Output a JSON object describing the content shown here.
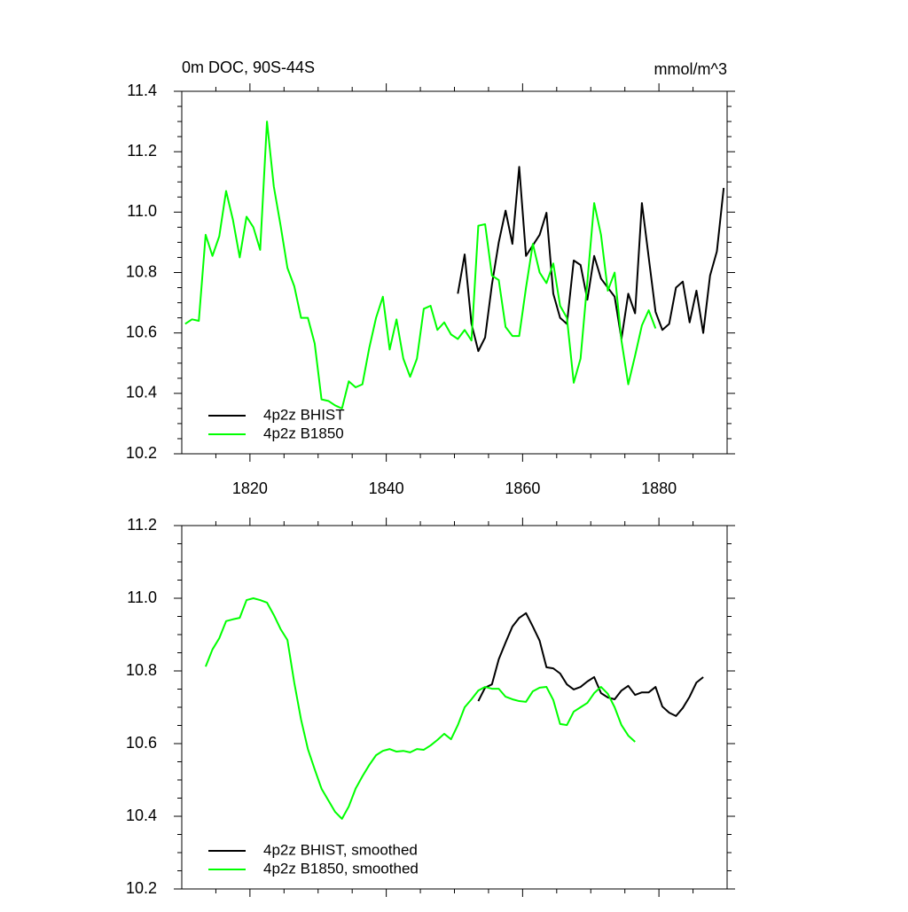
{
  "chart_data": [
    {
      "type": "line",
      "title": "0m DOC, 90S-44S",
      "subtitle": "mmol/m^3",
      "xlim": [
        1810,
        1890
      ],
      "xticks": [
        1820,
        1840,
        1860,
        1880
      ],
      "xminorticks": [
        1815,
        1825,
        1830,
        1835,
        1845,
        1850,
        1855,
        1865,
        1870,
        1875,
        1885
      ],
      "show_xtick_labels": true,
      "ylim": [
        10.2,
        11.4
      ],
      "yticks": [
        10.2,
        10.4,
        10.6,
        10.8,
        {
          "value": 11,
          "label": "11.0"
        },
        11.2,
        11.4
      ],
      "yminorticks": [
        10.25,
        10.3,
        10.35,
        10.45,
        10.5,
        10.55,
        10.65,
        10.7,
        10.75,
        10.85,
        10.9,
        10.95,
        11.05,
        11.1,
        11.15,
        11.25,
        11.3,
        11.35
      ],
      "grid": false,
      "legend": "lower left",
      "series": [
        {
          "name": "4p2z BHIST",
          "color": "#000000",
          "x": [
            1850.5,
            1851.5,
            1852.5,
            1853.5,
            1854.5,
            1855.5,
            1856.5,
            1857.5,
            1858.5,
            1859.5,
            1860.5,
            1861.5,
            1862.5,
            1863.5,
            1864.5,
            1865.5,
            1866.5,
            1867.5,
            1868.5,
            1869.5,
            1870.5,
            1871.5,
            1872.5,
            1873.5,
            1874.5,
            1875.5,
            1876.5,
            1877.5,
            1878.5,
            1879.5,
            1880.5,
            1881.5,
            1882.5,
            1883.5,
            1884.5,
            1885.5,
            1886.5,
            1887.5,
            1888.5,
            1889.5
          ],
          "values": [
            10.73,
            10.86,
            10.63,
            10.54,
            10.585,
            10.76,
            10.9,
            11.005,
            10.895,
            11.15,
            10.855,
            10.89,
            10.925,
            10.998,
            10.73,
            10.65,
            10.63,
            10.84,
            10.825,
            10.71,
            10.855,
            10.78,
            10.75,
            10.72,
            10.58,
            10.73,
            10.665,
            11.03,
            10.85,
            10.67,
            10.61,
            10.63,
            10.75,
            10.77,
            10.635,
            10.74,
            10.6,
            10.79,
            10.87,
            11.08
          ]
        },
        {
          "name": "4p2z B1850",
          "color": "#00ff00",
          "x": [
            1810.5,
            1811.5,
            1812.5,
            1813.5,
            1814.5,
            1815.5,
            1816.5,
            1817.5,
            1818.5,
            1819.5,
            1820.5,
            1821.5,
            1822.5,
            1823.5,
            1824.5,
            1825.5,
            1826.5,
            1827.5,
            1828.5,
            1829.5,
            1830.5,
            1831.5,
            1832.5,
            1833.5,
            1834.5,
            1835.5,
            1836.5,
            1837.5,
            1838.5,
            1839.5,
            1840.5,
            1841.5,
            1842.5,
            1843.5,
            1844.5,
            1845.5,
            1846.5,
            1847.5,
            1848.5,
            1849.5,
            1850.5,
            1851.5,
            1852.5,
            1853.5,
            1854.5,
            1855.5,
            1856.5,
            1857.5,
            1858.5,
            1859.5,
            1860.5,
            1861.5,
            1862.5,
            1863.5,
            1864.5,
            1865.5,
            1866.5,
            1867.5,
            1868.5,
            1869.5,
            1870.5,
            1871.5,
            1872.5,
            1873.5,
            1874.5,
            1875.5,
            1876.5,
            1877.5,
            1878.5,
            1879.5
          ],
          "values": [
            10.63,
            10.645,
            10.64,
            10.925,
            10.855,
            10.92,
            11.07,
            10.975,
            10.85,
            10.985,
            10.95,
            10.875,
            11.3,
            11.085,
            10.955,
            10.815,
            10.755,
            10.65,
            10.65,
            10.565,
            10.38,
            10.375,
            10.36,
            10.35,
            10.44,
            10.42,
            10.43,
            10.55,
            10.65,
            10.72,
            10.545,
            10.645,
            10.515,
            10.455,
            10.515,
            10.68,
            10.69,
            10.61,
            10.635,
            10.595,
            10.58,
            10.61,
            10.575,
            10.955,
            10.96,
            10.79,
            10.775,
            10.62,
            10.59,
            10.59,
            10.75,
            10.895,
            10.8,
            10.765,
            10.83,
            10.69,
            10.65,
            10.435,
            10.515,
            10.77,
            11.03,
            10.925,
            10.74,
            10.8,
            10.575,
            10.43,
            10.525,
            10.625,
            10.675,
            10.615
          ]
        }
      ]
    },
    {
      "type": "line",
      "xlim": [
        1810,
        1890
      ],
      "xticks": [
        1820,
        1840,
        1860,
        1880
      ],
      "xminorticks": [
        1815,
        1825,
        1830,
        1835,
        1845,
        1850,
        1855,
        1865,
        1870,
        1875,
        1885
      ],
      "show_xtick_labels": false,
      "ylim": [
        10.2,
        11.2
      ],
      "yticks": [
        10.2,
        10.4,
        10.6,
        10.8,
        {
          "value": 11,
          "label": "11.0"
        },
        11.2
      ],
      "yminorticks": [
        10.25,
        10.3,
        10.35,
        10.45,
        10.5,
        10.55,
        10.65,
        10.7,
        10.75,
        10.85,
        10.9,
        10.95,
        11.05,
        11.1,
        11.15
      ],
      "grid": false,
      "legend": "lower left",
      "series": [
        {
          "name": "4p2z BHIST, smoothed",
          "color": "#000000",
          "x": [
            1853.5,
            1854.5,
            1855.5,
            1856.5,
            1857.5,
            1858.5,
            1859.5,
            1860.5,
            1861.5,
            1862.5,
            1863.5,
            1864.5,
            1865.5,
            1866.5,
            1867.5,
            1868.5,
            1869.5,
            1870.5,
            1871.5,
            1872.5,
            1873.5,
            1874.5,
            1875.5,
            1876.5,
            1877.5,
            1878.5,
            1879.5,
            1880.5,
            1881.5,
            1882.5,
            1883.5,
            1884.5,
            1885.5,
            1886.5
          ],
          "values": [
            10.717,
            10.754,
            10.763,
            10.832,
            10.878,
            10.922,
            10.946,
            10.959,
            10.922,
            10.883,
            10.81,
            10.807,
            10.793,
            10.763,
            10.749,
            10.756,
            10.771,
            10.783,
            10.739,
            10.727,
            10.722,
            10.746,
            10.759,
            10.734,
            10.741,
            10.741,
            10.756,
            10.702,
            10.685,
            10.676,
            10.698,
            10.729,
            10.768,
            10.783
          ]
        },
        {
          "name": "4p2z B1850, smoothed",
          "color": "#00ff00",
          "x": [
            1813.5,
            1814.5,
            1815.5,
            1816.5,
            1817.5,
            1818.5,
            1819.5,
            1820.5,
            1821.5,
            1822.5,
            1823.5,
            1824.5,
            1825.5,
            1826.5,
            1827.5,
            1828.5,
            1829.5,
            1830.5,
            1831.5,
            1832.5,
            1833.5,
            1834.5,
            1835.5,
            1836.5,
            1837.5,
            1838.5,
            1839.5,
            1840.5,
            1841.5,
            1842.5,
            1843.5,
            1844.5,
            1845.5,
            1846.5,
            1847.5,
            1848.5,
            1849.5,
            1850.5,
            1851.5,
            1852.5,
            1853.5,
            1854.5,
            1855.5,
            1856.5,
            1857.5,
            1858.5,
            1859.5,
            1860.5,
            1861.5,
            1862.5,
            1863.5,
            1864.5,
            1865.5,
            1866.5,
            1867.5,
            1868.5,
            1869.5,
            1870.5,
            1871.5,
            1872.5,
            1873.5,
            1874.5,
            1875.5,
            1876.5
          ],
          "values": [
            10.812,
            10.859,
            10.89,
            10.937,
            10.942,
            10.946,
            10.995,
            11.0,
            10.995,
            10.988,
            10.954,
            10.915,
            10.885,
            10.768,
            10.666,
            10.585,
            10.529,
            10.476,
            10.444,
            10.412,
            10.393,
            10.427,
            10.476,
            10.51,
            10.541,
            10.568,
            10.58,
            10.585,
            10.578,
            10.58,
            10.576,
            10.585,
            10.583,
            10.595,
            10.61,
            10.627,
            10.612,
            10.651,
            10.7,
            10.722,
            10.746,
            10.756,
            10.751,
            10.751,
            10.729,
            10.722,
            10.717,
            10.715,
            10.744,
            10.754,
            10.756,
            10.72,
            10.654,
            10.651,
            10.688,
            10.7,
            10.712,
            10.739,
            10.756,
            10.737,
            10.7,
            10.651,
            10.622,
            10.605
          ]
        }
      ]
    }
  ]
}
